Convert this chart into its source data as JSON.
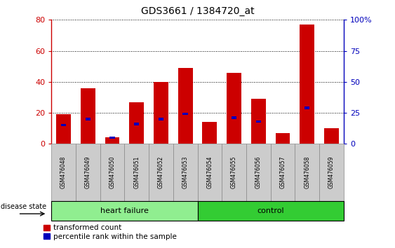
{
  "title": "GDS3661 / 1384720_at",
  "samples": [
    "GSM476048",
    "GSM476049",
    "GSM476050",
    "GSM476051",
    "GSM476052",
    "GSM476053",
    "GSM476054",
    "GSM476055",
    "GSM476056",
    "GSM476057",
    "GSM476058",
    "GSM476059"
  ],
  "red_values": [
    19,
    36,
    4,
    27,
    40,
    49,
    14,
    46,
    29,
    7,
    77,
    10
  ],
  "blue_values": [
    15,
    20,
    5,
    16,
    20,
    24,
    0,
    21,
    18,
    0,
    29,
    0
  ],
  "groups": [
    {
      "label": "heart failure",
      "start": 0,
      "end": 5,
      "color": "#90EE90"
    },
    {
      "label": "control",
      "start": 6,
      "end": 11,
      "color": "#33CC33"
    }
  ],
  "group_label": "disease state",
  "ylim_left": [
    0,
    80
  ],
  "ylim_right": [
    0,
    100
  ],
  "yticks_left": [
    0,
    20,
    40,
    60,
    80
  ],
  "yticks_right": [
    0,
    25,
    50,
    75,
    100
  ],
  "red_color": "#CC0000",
  "blue_color": "#0000BB",
  "bar_bg_color": "#CCCCCC",
  "legend_items": [
    "transformed count",
    "percentile rank within the sample"
  ],
  "grid_style": "dotted",
  "figure_width": 5.63,
  "figure_height": 3.54
}
